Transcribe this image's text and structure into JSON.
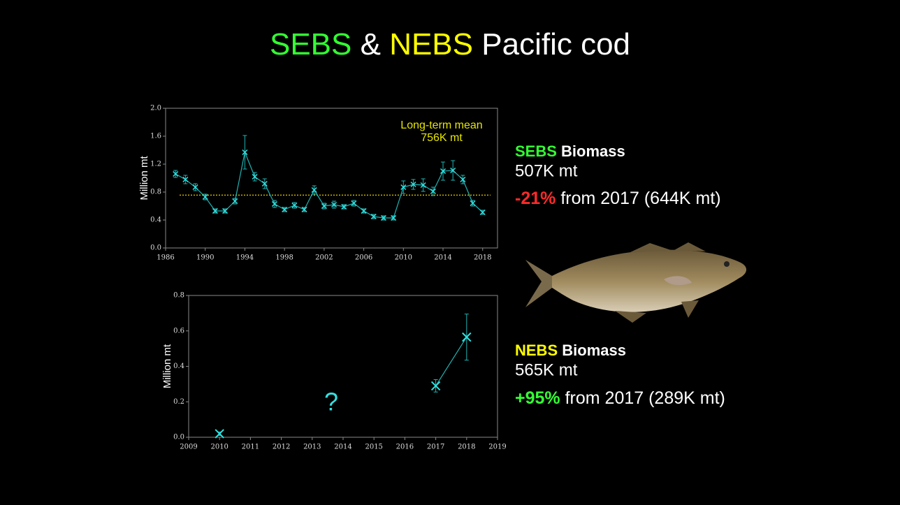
{
  "title_parts": [
    "SEBS",
    "&",
    "NEBS",
    "Pacific cod"
  ],
  "sebs_summary": {
    "region": "SEBS",
    "label": "Biomass",
    "biomass": "507K mt",
    "change": "-21%",
    "comparison": "from 2017 (644K mt)"
  },
  "nebs_summary": {
    "region": "NEBS",
    "label": "Biomass",
    "biomass": "565K mt",
    "change": "+95%",
    "comparison": "from 2017 (289K mt)"
  },
  "chart_data": [
    {
      "type": "line",
      "y_label": "Million mt",
      "color": "#1fb3b3",
      "x": [
        1987,
        1988,
        1989,
        1990,
        1991,
        1992,
        1993,
        1994,
        1995,
        1996,
        1997,
        1998,
        1999,
        2000,
        2001,
        2002,
        2003,
        2004,
        2005,
        2006,
        2007,
        2008,
        2009,
        2010,
        2011,
        2012,
        2013,
        2014,
        2015,
        2016,
        2017,
        2018
      ],
      "values": [
        1.06,
        0.98,
        0.87,
        0.73,
        0.53,
        0.53,
        0.67,
        1.37,
        1.02,
        0.92,
        0.63,
        0.55,
        0.61,
        0.55,
        0.83,
        0.6,
        0.62,
        0.59,
        0.64,
        0.53,
        0.45,
        0.43,
        0.43,
        0.87,
        0.91,
        0.9,
        0.81,
        1.1,
        1.11,
        0.98,
        0.64,
        0.51
      ],
      "errors": [
        0.05,
        0.06,
        0.05,
        0.04,
        0.03,
        0.03,
        0.04,
        0.24,
        0.06,
        0.07,
        0.05,
        0.03,
        0.04,
        0.03,
        0.06,
        0.04,
        0.05,
        0.03,
        0.04,
        0.03,
        0.03,
        0.03,
        0.03,
        0.09,
        0.07,
        0.09,
        0.06,
        0.13,
        0.14,
        0.06,
        0.04,
        0.03
      ],
      "mean": 0.756,
      "mean_color": "#c8b400",
      "mean_label": [
        "Long-term mean",
        "756K mt"
      ],
      "xlim": [
        1986,
        2019.5
      ],
      "xticks": [
        1986,
        1990,
        1994,
        1998,
        2002,
        2006,
        2010,
        2014,
        2018
      ],
      "ylim": [
        0,
        2
      ],
      "yticks": [
        {
          "value": 0,
          "label": "0.0"
        },
        0.4,
        0.8,
        1.2,
        1.6,
        {
          "value": 2,
          "label": "2.0"
        }
      ]
    },
    {
      "type": "line",
      "y_label": "Million mt",
      "color": "#1fb3b3",
      "x": [
        2010,
        2011,
        2012,
        2013,
        2014,
        2015,
        2016,
        2017,
        2018
      ],
      "values": [
        0.02,
        null,
        null,
        null,
        null,
        null,
        null,
        0.29,
        0.565
      ],
      "errors": [
        0.01,
        null,
        null,
        null,
        null,
        null,
        null,
        0.035,
        0.13
      ],
      "annotation": "?",
      "xlim": [
        2009,
        2019
      ],
      "xticks": [
        2009,
        2010,
        2011,
        2012,
        2013,
        2014,
        2015,
        2016,
        2017,
        2018,
        2019
      ],
      "ylim": [
        0,
        0.8
      ],
      "yticks": [
        {
          "value": 0,
          "label": "0.0"
        },
        0.2,
        0.4,
        0.6,
        0.8
      ]
    }
  ]
}
